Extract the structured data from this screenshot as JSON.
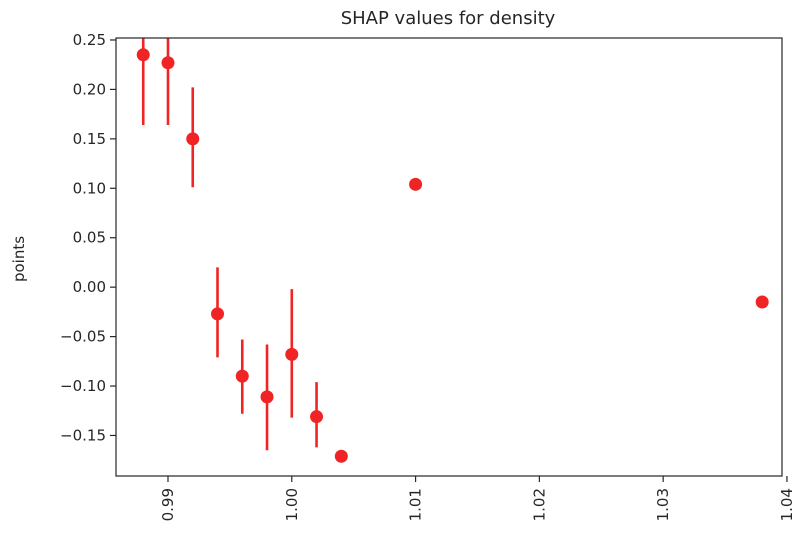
{
  "chart_data": {
    "type": "scatter",
    "title": "SHAP values for density",
    "xlabel": "",
    "ylabel": "points",
    "xlim": [
      0.9858,
      1.0396
    ],
    "ylim": [
      -0.191,
      0.252
    ],
    "x_ticks": [
      0.99,
      1.0,
      1.01,
      1.02,
      1.03,
      1.04
    ],
    "x_tick_labels": [
      "0.99",
      "1.00",
      "1.01",
      "1.02",
      "1.03",
      "1.04"
    ],
    "y_ticks": [
      0.25,
      0.2,
      0.15,
      0.1,
      0.05,
      0.0,
      -0.05,
      -0.1,
      -0.15
    ],
    "y_tick_labels": [
      "0.25",
      "0.20",
      "0.15",
      "0.10",
      "0.05",
      "0.00",
      "−0.05",
      "−0.10",
      "−0.15"
    ],
    "grid": false,
    "marker_color": "#f02424",
    "points": [
      {
        "x": 0.988,
        "y": 0.235,
        "err_low": 0.164,
        "err_high": 0.26
      },
      {
        "x": 0.99,
        "y": 0.227,
        "err_low": 0.164,
        "err_high": 0.26
      },
      {
        "x": 0.992,
        "y": 0.15,
        "err_low": 0.101,
        "err_high": 0.202
      },
      {
        "x": 0.994,
        "y": -0.027,
        "err_low": -0.071,
        "err_high": 0.02
      },
      {
        "x": 0.996,
        "y": -0.09,
        "err_low": -0.128,
        "err_high": -0.053
      },
      {
        "x": 0.998,
        "y": -0.111,
        "err_low": -0.165,
        "err_high": -0.058
      },
      {
        "x": 1.0,
        "y": -0.068,
        "err_low": -0.132,
        "err_high": -0.002
      },
      {
        "x": 1.002,
        "y": -0.131,
        "err_low": -0.162,
        "err_high": -0.096
      },
      {
        "x": 1.004,
        "y": -0.171,
        "err_low": null,
        "err_high": null
      },
      {
        "x": 1.01,
        "y": 0.104,
        "err_low": null,
        "err_high": null
      },
      {
        "x": 1.038,
        "y": -0.015,
        "err_low": null,
        "err_high": null
      }
    ]
  }
}
